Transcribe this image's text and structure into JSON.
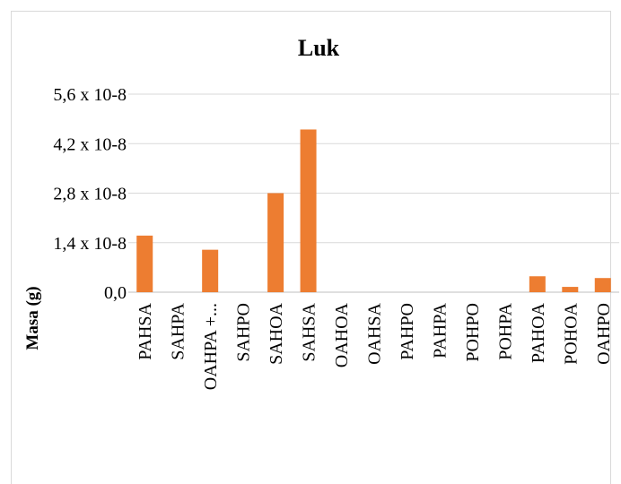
{
  "chart_data": {
    "type": "bar",
    "title": "Luk",
    "y_label": "Masa (g)",
    "categories": [
      "PAHSA",
      "SAHPA",
      "OAHPA +...",
      "SAHPO",
      "SAHOA",
      "SAHSA",
      "OAHOA",
      "OAHSA",
      "PAHPO",
      "PAHPA",
      "POHPO",
      "POHPA",
      "PAHOA",
      "POHOA",
      "OAHPO"
    ],
    "values": [
      1.6e-08,
      0,
      1.2e-08,
      0,
      2.8e-08,
      4.6e-08,
      0,
      0,
      0,
      0,
      0,
      0,
      4.5e-09,
      1.5e-09,
      4e-09
    ],
    "color": "#ed7d31",
    "ylim": [
      0,
      5.6e-08
    ],
    "yticks": [
      {
        "value": 0,
        "label": "0,0"
      },
      {
        "value": 1.4e-08,
        "label": "1,4 x 10-8"
      },
      {
        "value": 2.8e-08,
        "label": "2,8 x 10-8"
      },
      {
        "value": 4.2e-08,
        "label": "4,2 x 10-8"
      },
      {
        "value": 5.6e-08,
        "label": "5,6 x 10-8"
      }
    ],
    "grid": true
  }
}
